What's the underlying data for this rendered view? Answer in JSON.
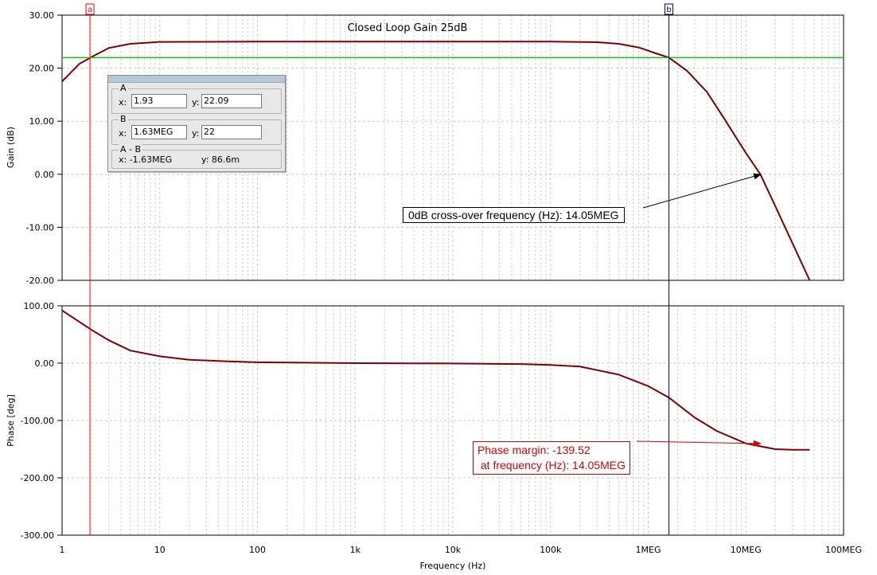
{
  "chart_data": [
    {
      "type": "line",
      "title": "Closed Loop Gain 25dB",
      "ylabel": "Gain (dB)",
      "xscale": "log",
      "xlim": [
        1,
        100000000
      ],
      "ylim": [
        -20,
        30
      ],
      "yticks": [
        "30.00",
        "20.00",
        "10.00",
        "0.00",
        "-10.00",
        "-20.00"
      ],
      "series": [
        {
          "color": "#800000",
          "x": [
            1,
            1.5,
            2,
            3,
            5,
            10,
            100,
            1000,
            100000,
            300000,
            500000,
            800000,
            1200000,
            1630000,
            2500000,
            4000000,
            6000000,
            10000000,
            14050000,
            20000000,
            30000000,
            45000000
          ],
          "values": [
            17.5,
            20.8,
            22.1,
            23.8,
            24.6,
            24.95,
            25,
            25,
            25,
            24.9,
            24.6,
            23.9,
            22.8,
            22,
            19.5,
            15.5,
            10.5,
            4.0,
            0,
            -6,
            -13,
            -20
          ]
        },
        {
          "color": "#00cc00",
          "x": [
            1,
            100000000
          ],
          "values": [
            22,
            22
          ]
        }
      ],
      "annotation": "0dB cross-over frequency (Hz): 14.05MEG",
      "grid": true
    },
    {
      "type": "line",
      "ylabel": "Phase [deg]",
      "xlabel": "Frequency (Hz)",
      "xscale": "log",
      "xlim": [
        1,
        100000000
      ],
      "ylim": [
        -300,
        100
      ],
      "yticks": [
        "100.00",
        "0.00",
        "-100.00",
        "-200.00",
        "-300.00"
      ],
      "xticks": [
        "1",
        "10",
        "100",
        "1k",
        "10k",
        "100k",
        "1MEG",
        "10MEG",
        "100MEG"
      ],
      "series": [
        {
          "color": "#800000",
          "x": [
            1,
            2,
            3,
            5,
            10,
            20,
            50,
            100,
            1000,
            10000,
            50000,
            100000,
            200000,
            500000,
            1000000,
            1630000,
            3000000,
            5000000,
            10000000,
            14050000,
            20000000,
            30000000,
            45000000
          ],
          "values": [
            92,
            58,
            40,
            22,
            12,
            6,
            3,
            1.5,
            0,
            -0.5,
            -1.5,
            -3,
            -6,
            -20,
            -40,
            -60,
            -95,
            -118,
            -140,
            -145,
            -150,
            -151,
            -151
          ]
        }
      ],
      "annotation": [
        "Phase margin: -139.52",
        " at frequency (Hz): 14.05MEG"
      ],
      "grid": true
    }
  ],
  "cursors": {
    "a": {
      "label": "a",
      "x": 1.93,
      "color": "#ff0000"
    },
    "b": {
      "label": "b",
      "x": 1630000,
      "color": "#00007f"
    }
  },
  "cursor_panel": {
    "a_title": "A",
    "a_x": "1.93",
    "a_y": "22.09",
    "b_title": "B",
    "b_x": "1.63MEG",
    "b_y": "22",
    "diff_title": "A - B",
    "diff_x": "x:  -1.63MEG",
    "diff_y": "y: 86.6m",
    "x_label": "x:",
    "y_label": "y:"
  }
}
